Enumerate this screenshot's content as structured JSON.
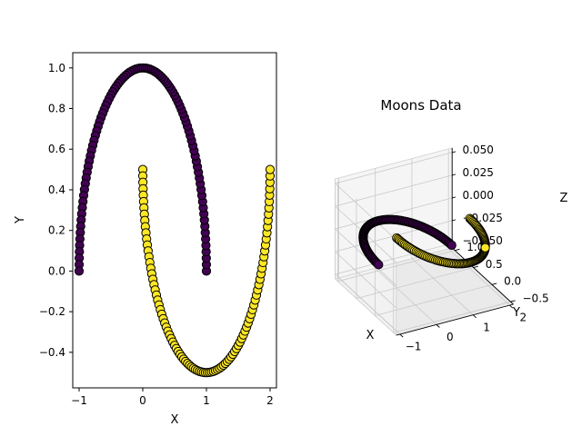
{
  "chart_data": [
    {
      "type": "scatter",
      "title": "",
      "xlabel": "X",
      "ylabel": "Y",
      "xlim": [
        -1.1,
        2.1
      ],
      "ylim": [
        -0.575,
        1.075
      ],
      "x_ticks": [
        -1,
        0,
        1,
        2
      ],
      "y_ticks": [
        -0.4,
        -0.2,
        0.0,
        0.2,
        0.4,
        0.6,
        0.8,
        1.0
      ],
      "x_tick_labels": [
        "−1",
        "0",
        "1",
        "2"
      ],
      "y_tick_labels": [
        "−0.4",
        "−0.2",
        "0.0",
        "0.2",
        "0.4",
        "0.6",
        "0.8",
        "1.0"
      ],
      "grid": false,
      "series": [
        {
          "color": "#440154",
          "edgecolor": "#000000",
          "t_start": 0,
          "t_end": 3.14159,
          "points": 100,
          "formula_x": "cos(t)",
          "formula_y": "sin(t)"
        },
        {
          "color": "#fde725",
          "edgecolor": "#000000",
          "t_start": 0,
          "t_end": 3.14159,
          "points": 100,
          "formula_x": "1 - cos(t)",
          "formula_y": "0.5 - sin(t)"
        }
      ]
    },
    {
      "type": "scatter3d",
      "title": "Moons Data",
      "xlabel": "X",
      "ylabel": "Y",
      "zlabel": "Z",
      "xlim": [
        -1.1,
        2.1
      ],
      "ylim": [
        -0.575,
        1.075
      ],
      "zlim": [
        -0.055,
        0.055
      ],
      "x_ticks": [
        -1,
        0,
        1,
        2
      ],
      "y_ticks": [
        -0.5,
        0.0,
        0.5,
        1.0
      ],
      "z_ticks": [
        -0.05,
        -0.025,
        0.0,
        0.025,
        0.05
      ],
      "x_tick_labels": [
        "−1",
        "0",
        "1",
        "2"
      ],
      "y_tick_labels": [
        "−0.5",
        "0.0",
        "0.5",
        "1.0"
      ],
      "z_tick_labels": [
        "−0.050",
        "−0.025",
        "0.000",
        "0.025",
        "0.050"
      ],
      "view": {
        "elev": 30,
        "azim": -60
      },
      "grid": true,
      "z_value": 0,
      "series": [
        {
          "color": "#440154",
          "edgecolor": "#000000",
          "source_series": 0
        },
        {
          "color": "#fde725",
          "edgecolor": "#000000",
          "source_series": 1
        }
      ]
    }
  ]
}
